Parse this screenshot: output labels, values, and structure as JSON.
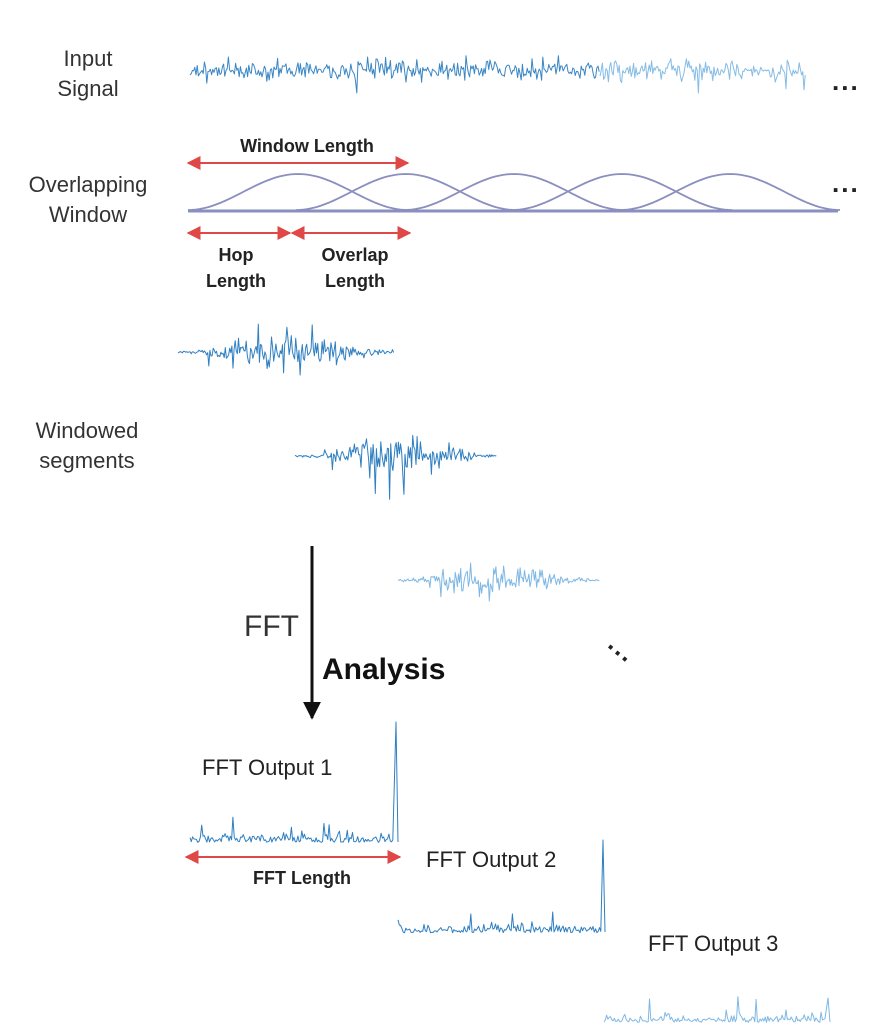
{
  "labels": {
    "input_signal": [
      "Input",
      "Signal"
    ],
    "overlapping_window": [
      "Overlapping",
      "Window"
    ],
    "windowed_segments": [
      "Windowed",
      "segments"
    ],
    "window_length": "Window Length",
    "hop_length": [
      "Hop",
      "Length"
    ],
    "overlap_length": [
      "Overlap",
      "Length"
    ],
    "fft": "FFT",
    "analysis": "Analysis",
    "fft_output_1": "FFT Output 1",
    "fft_output_2": "FFT Output 2",
    "fft_output_3": "FFT Output 3",
    "fft_length": "FFT Length",
    "ellipsis": "..."
  },
  "colors": {
    "signal_dark": "#2f7fc1",
    "signal_light": "#7fb8e4",
    "window_curve": "#8a8fbf",
    "arrow_red": "#e04848",
    "arrow_black": "#111111"
  },
  "window_count": 5
}
